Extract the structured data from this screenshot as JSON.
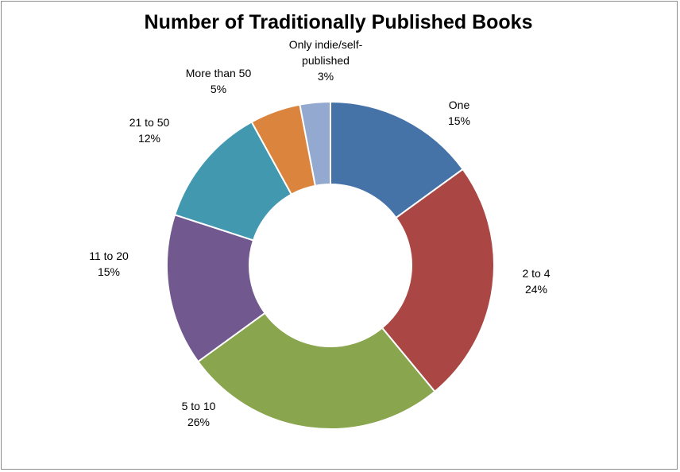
{
  "chart_data": {
    "type": "pie",
    "subtype": "donut",
    "title": "Number of Traditionally Published Books",
    "legend": "none",
    "slices": [
      {
        "label": "One",
        "value": 15,
        "value_label": "15%",
        "color": "#4572a7"
      },
      {
        "label": "2 to 4",
        "value": 24,
        "value_label": "24%",
        "color": "#aa4643"
      },
      {
        "label": "5 to 10",
        "value": 26,
        "value_label": "26%",
        "color": "#89a54e"
      },
      {
        "label": "11 to 20",
        "value": 15,
        "value_label": "15%",
        "color": "#71588f"
      },
      {
        "label": "21 to 50",
        "value": 12,
        "value_label": "12%",
        "color": "#4198af"
      },
      {
        "label": "More than 50",
        "value": 5,
        "value_label": "5%",
        "color": "#db843d"
      },
      {
        "label": "Only indie/self-published",
        "label_lines": [
          "Only indie/self-",
          "published"
        ],
        "value": 3,
        "value_label": "3%",
        "color": "#93a9cf"
      }
    ]
  }
}
